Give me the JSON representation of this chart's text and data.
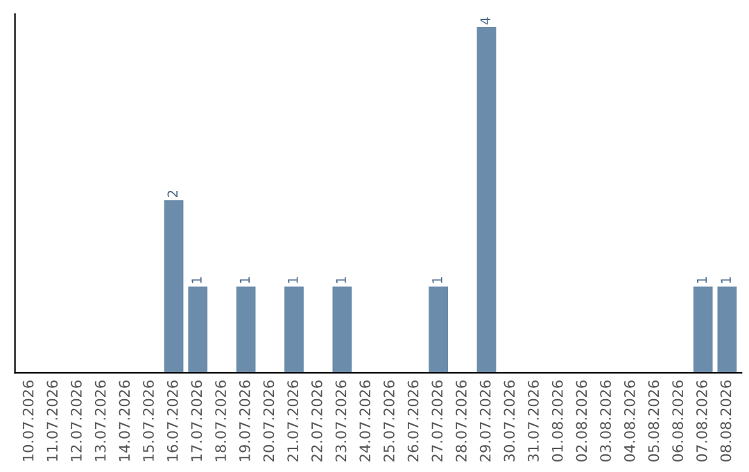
{
  "chart_data": {
    "type": "bar",
    "categories": [
      "10.07.2026",
      "11.07.2026",
      "12.07.2026",
      "13.07.2026",
      "14.07.2026",
      "15.07.2026",
      "16.07.2026",
      "17.07.2026",
      "18.07.2026",
      "19.07.2026",
      "20.07.2026",
      "21.07.2026",
      "22.07.2026",
      "23.07.2026",
      "24.07.2026",
      "25.07.2026",
      "26.07.2026",
      "27.07.2026",
      "28.07.2026",
      "29.07.2026",
      "30.07.2026",
      "31.07.2026",
      "01.08.2026",
      "02.08.2026",
      "03.08.2026",
      "04.08.2026",
      "05.08.2026",
      "06.08.2026",
      "07.08.2026",
      "08.08.2026"
    ],
    "values": [
      0,
      0,
      0,
      0,
      0,
      0,
      2,
      1,
      0,
      1,
      0,
      1,
      0,
      1,
      0,
      0,
      0,
      1,
      0,
      4,
      0,
      0,
      0,
      0,
      0,
      0,
      0,
      0,
      1,
      1
    ],
    "value_labels": [
      null,
      null,
      null,
      null,
      null,
      null,
      "2",
      "1",
      null,
      "1",
      null,
      "1",
      null,
      "1",
      null,
      null,
      null,
      "1",
      null,
      "4",
      null,
      null,
      null,
      null,
      null,
      null,
      null,
      null,
      "1",
      "1"
    ],
    "color": "#6b8cab",
    "ylim": [
      0,
      4.15
    ],
    "tick_labels": "x",
    "grid": false
  }
}
